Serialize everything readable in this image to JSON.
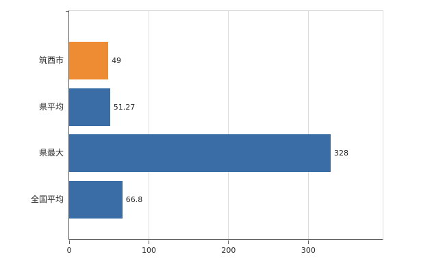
{
  "chart_data": {
    "type": "bar",
    "orientation": "horizontal",
    "title": "",
    "xlabel": "",
    "ylabel": "",
    "categories": [
      "筑西市",
      "県平均",
      "県最大",
      "全国平均"
    ],
    "values": [
      49,
      51.27,
      328,
      66.8
    ],
    "value_labels": [
      "49",
      "51.27",
      "328",
      "66.8"
    ],
    "bar_colors": [
      "#ed8c33",
      "#3a6ca5",
      "#3a6ca5",
      "#3a6ca5"
    ],
    "xlim": [
      0,
      395
    ],
    "x_ticks": [
      0,
      100,
      200,
      300
    ],
    "grid": true,
    "legend": "none",
    "colors": {
      "axis": "#595959",
      "gridline": "#d9d9d9",
      "plot_border": "#d9d9d9",
      "text": "#262626",
      "background": "#ffffff"
    }
  }
}
